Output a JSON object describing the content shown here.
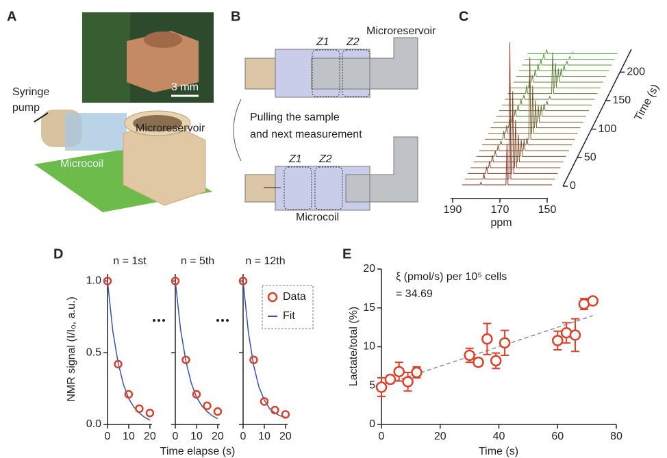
{
  "panel_labels": [
    "A",
    "B",
    "C",
    "D",
    "E"
  ],
  "panel_a": {
    "scale_bar": "3 mm",
    "syringe_pump": [
      "Syringe",
      "pump"
    ],
    "microreservoir": "Microreservoir",
    "microcoil": "Microcoil"
  },
  "panel_b": {
    "top_zones": [
      "Z1",
      "Z2"
    ],
    "microreservoir": "Microreservoir",
    "caption": [
      "Pulling the sample",
      "and next measurement"
    ],
    "bottom_zones": [
      "Z1",
      "Z2"
    ],
    "microcoil": "Microcoil"
  },
  "chart_data": [
    {
      "type": "waterfall",
      "xlabel": "ppm",
      "xlim": [
        190,
        150
      ],
      "xticks": [
        190,
        170,
        150
      ],
      "zlabel": "Time (s)",
      "zlim": [
        0,
        240
      ],
      "zticks": [
        0,
        50,
        100,
        150,
        200
      ],
      "colors": [
        "#8b3a2a",
        "#4f9a3a"
      ],
      "times": [
        0,
        10,
        20,
        30,
        40,
        50,
        60,
        70,
        80,
        90,
        100,
        110,
        120,
        130,
        140,
        150,
        160,
        170,
        180,
        190,
        200,
        210,
        220,
        230
      ],
      "series": [
        {
          "ppm": 167,
          "values": [
            30,
            100,
            60,
            35,
            20,
            12,
            8,
            5,
            60,
            35,
            20,
            12,
            8,
            5,
            3,
            2,
            30,
            18,
            10,
            6,
            4,
            3,
            2,
            1
          ]
        },
        {
          "ppm": 178,
          "values": [
            2,
            4,
            5,
            5,
            5,
            4,
            4,
            3,
            6,
            6,
            6,
            5,
            5,
            4,
            4,
            3,
            6,
            6,
            5,
            5,
            5,
            4,
            4,
            3
          ]
        }
      ]
    },
    {
      "type": "decay",
      "title": "n = 1st",
      "ylabel": "NMR signal (I/I₀, a.u.)",
      "xlim": [
        0,
        21
      ],
      "xticks": [
        0,
        10,
        20
      ],
      "ylim": [
        0,
        1.05
      ],
      "yticks": [
        {
          "value": 0,
          "label": "0.0"
        },
        0.5,
        {
          "value": 1,
          "label": "1.0"
        }
      ],
      "series": [
        {
          "color": "#d9412b",
          "x": [
            0,
            5,
            10,
            15,
            20
          ],
          "values": [
            1.0,
            0.42,
            0.21,
            0.11,
            0.08
          ]
        },
        {
          "color": "#3a4fb0",
          "x": [
            0,
            2.5,
            5,
            7.5,
            10,
            12.5,
            15,
            17.5,
            20
          ],
          "values": [
            1,
            0.65,
            0.43,
            0.28,
            0.18,
            0.12,
            0.08,
            0.05,
            0.03
          ]
        }
      ]
    },
    {
      "type": "decay",
      "title": "n = 5th",
      "xlabel": "Time elapse (s)",
      "xlim": [
        0,
        21
      ],
      "xticks": [
        0,
        10,
        20
      ],
      "ylim": [
        0,
        1.05
      ],
      "yticks": [
        0,
        0.5,
        1
      ],
      "series": [
        {
          "color": "#d9412b",
          "x": [
            0,
            5,
            10,
            15,
            20
          ],
          "values": [
            1.0,
            0.45,
            0.21,
            0.13,
            0.09
          ]
        },
        {
          "color": "#3a4fb0",
          "x": [
            0,
            2.5,
            5,
            7.5,
            10,
            12.5,
            15,
            17.5,
            20
          ],
          "values": [
            1,
            0.66,
            0.44,
            0.29,
            0.19,
            0.13,
            0.09,
            0.06,
            0.04
          ]
        }
      ]
    },
    {
      "type": "decay",
      "title": "n = 12th",
      "xlim": [
        0,
        21
      ],
      "xticks": [
        0,
        10,
        20
      ],
      "ylim": [
        0,
        1.05
      ],
      "yticks": [
        0,
        0.5,
        1
      ],
      "series": [
        {
          "name": "Data",
          "color": "#d9412b",
          "x": [
            0,
            5,
            10,
            15,
            20
          ],
          "values": [
            1.0,
            0.45,
            0.16,
            0.1,
            0.07
          ]
        },
        {
          "name": "Fit",
          "color": "#3a4fb0",
          "x": [
            0,
            2.5,
            5,
            7.5,
            10,
            12.5,
            15,
            17.5,
            20
          ],
          "values": [
            1,
            0.64,
            0.41,
            0.26,
            0.17,
            0.11,
            0.08,
            0.06,
            0.05
          ]
        }
      ]
    },
    {
      "type": "errorbar",
      "xlabel": "Time (s)",
      "ylabel": "Lactate/total (%)",
      "xlim": [
        0,
        80
      ],
      "xticks": [
        0,
        20,
        40,
        60,
        80
      ],
      "ylim": [
        0,
        20
      ],
      "yticks": [
        0,
        5,
        10,
        15,
        20
      ],
      "annotations": [
        "ξ (pmol/s) per 10⁵ cells",
        "= 34.69"
      ],
      "series": [
        {
          "color": "#d9412b",
          "x": [
            0,
            3,
            6,
            9,
            12,
            30,
            33,
            36,
            39,
            42,
            60,
            63,
            66,
            69,
            72
          ],
          "values": [
            4.8,
            5.8,
            6.8,
            5.5,
            6.7,
            8.9,
            8.0,
            11,
            8.2,
            10.5,
            10.8,
            11.8,
            11.5,
            15.5,
            15.9
          ],
          "errors": [
            1.2,
            0.5,
            1.2,
            1.2,
            0.7,
            0.9,
            0.5,
            2.0,
            1.0,
            1.6,
            1.2,
            1.3,
            2.1,
            0.7,
            0.4
          ]
        },
        {
          "color": "#888888",
          "dashed": true,
          "x": [
            0,
            72
          ],
          "values": [
            5.0,
            14.0
          ]
        }
      ]
    }
  ]
}
